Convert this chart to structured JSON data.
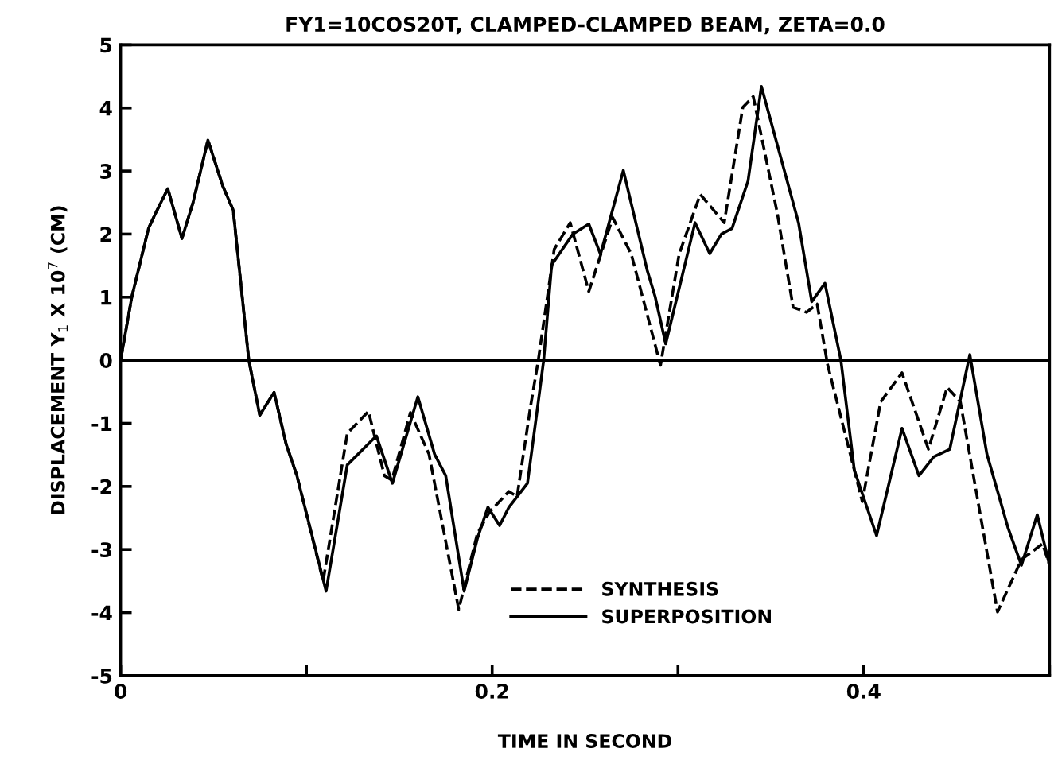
{
  "chart_data": {
    "type": "line",
    "title": "FY1=10COS20T, CLAMPED-CLAMPED BEAM, ZETA=0.0",
    "xlabel": "TIME IN SECOND",
    "ylabel": "DISPLACEMENT Y$_{1}$ X 10$^{7}$ (CM)",
    "xlim": [
      0,
      0.5
    ],
    "ylim": [
      -5,
      5
    ],
    "xticks": [
      0,
      {
        "value": 0.1,
        "label": null
      },
      0.2,
      {
        "value": 0.3,
        "label": null
      },
      0.4,
      {
        "value": 0.5,
        "label": null
      }
    ],
    "yticks": [
      -5,
      -4,
      -3,
      -2,
      -1,
      0,
      1,
      2,
      3,
      4,
      5
    ],
    "grid": false,
    "legend": "bottom right",
    "marker": "none",
    "ref_lines": [
      {
        "axis": "y",
        "value": 0,
        "label": null,
        "color": "#000000",
        "line_style": "solid"
      }
    ],
    "series": [
      {
        "name": "SYNTHESIS",
        "color": "#000000",
        "line_style": "dashed",
        "x": [
          0,
          0.006,
          0.015,
          0.019,
          0.0254,
          0.033,
          0.039,
          0.047,
          0.055,
          0.0606,
          0.069,
          0.0749,
          0.0826,
          0.0891,
          0.0949,
          0.109,
          0.122,
          0.1334,
          0.142,
          0.146,
          0.156,
          0.166,
          0.182,
          0.192,
          0.1985,
          0.209,
          0.2134,
          0.2206,
          0.2248,
          0.2334,
          0.242,
          0.252,
          0.2649,
          0.2749,
          0.2906,
          0.3006,
          0.312,
          0.3249,
          0.3349,
          0.3405,
          0.3534,
          0.362,
          0.3692,
          0.3749,
          0.3806,
          0.3863,
          0.3992,
          0.4091,
          0.4206,
          0.4348,
          0.4449,
          0.452,
          0.472,
          0.4849,
          0.4963,
          0.5
        ],
        "values": [
          0,
          1.0,
          2.09,
          2.34,
          2.72,
          1.93,
          2.5,
          3.49,
          2.76,
          2.38,
          0,
          -0.87,
          -0.51,
          -1.33,
          -1.83,
          -3.5,
          -1.16,
          -0.81,
          -1.83,
          -1.9,
          -0.83,
          -1.49,
          -3.95,
          -2.75,
          -2.41,
          -2.08,
          -2.16,
          -0.74,
          0,
          1.76,
          2.18,
          1.09,
          2.26,
          1.68,
          -0.08,
          1.68,
          2.63,
          2.18,
          4.01,
          4.18,
          2.34,
          0.84,
          0.76,
          0.89,
          -0.08,
          -0.74,
          -2.24,
          -0.66,
          -0.2,
          -1.41,
          -0.43,
          -0.66,
          -3.99,
          -3.16,
          -2.91,
          -3.25
        ]
      },
      {
        "name": "SUPERPOSITION",
        "color": "#000000",
        "line_style": "solid",
        "x": [
          0,
          0.006,
          0.015,
          0.019,
          0.0254,
          0.033,
          0.039,
          0.047,
          0.055,
          0.0606,
          0.069,
          0.0749,
          0.0826,
          0.0891,
          0.0949,
          0.1106,
          0.122,
          0.1349,
          0.1377,
          0.1463,
          0.16,
          0.169,
          0.175,
          0.1849,
          0.192,
          0.1977,
          0.204,
          0.209,
          0.219,
          0.2248,
          0.2277,
          0.232,
          0.2434,
          0.252,
          0.2583,
          0.2706,
          0.2834,
          0.2877,
          0.2934,
          0.3092,
          0.3171,
          0.3234,
          0.3291,
          0.3377,
          0.3449,
          0.3549,
          0.3649,
          0.372,
          0.3791,
          0.3877,
          0.3949,
          0.4069,
          0.4206,
          0.4297,
          0.4377,
          0.4463,
          0.4571,
          0.4663,
          0.4777,
          0.4849,
          0.4934,
          0.5
        ],
        "values": [
          0,
          1.0,
          2.09,
          2.34,
          2.72,
          1.93,
          2.5,
          3.49,
          2.76,
          2.38,
          0,
          -0.87,
          -0.51,
          -1.33,
          -1.83,
          -3.66,
          -1.66,
          -1.28,
          -1.2,
          -1.95,
          -0.58,
          -1.49,
          -1.83,
          -3.66,
          -2.83,
          -2.33,
          -2.62,
          -2.33,
          -1.95,
          -0.66,
          0,
          1.51,
          2.0,
          2.16,
          1.68,
          3.01,
          1.43,
          1.01,
          0.26,
          2.18,
          1.69,
          2.0,
          2.09,
          2.84,
          4.34,
          3.26,
          2.18,
          0.93,
          1.22,
          0,
          -1.74,
          -2.78,
          -1.08,
          -1.83,
          -1.53,
          -1.41,
          0.09,
          -1.49,
          -2.66,
          -3.25,
          -2.45,
          -3.25
        ]
      }
    ]
  }
}
